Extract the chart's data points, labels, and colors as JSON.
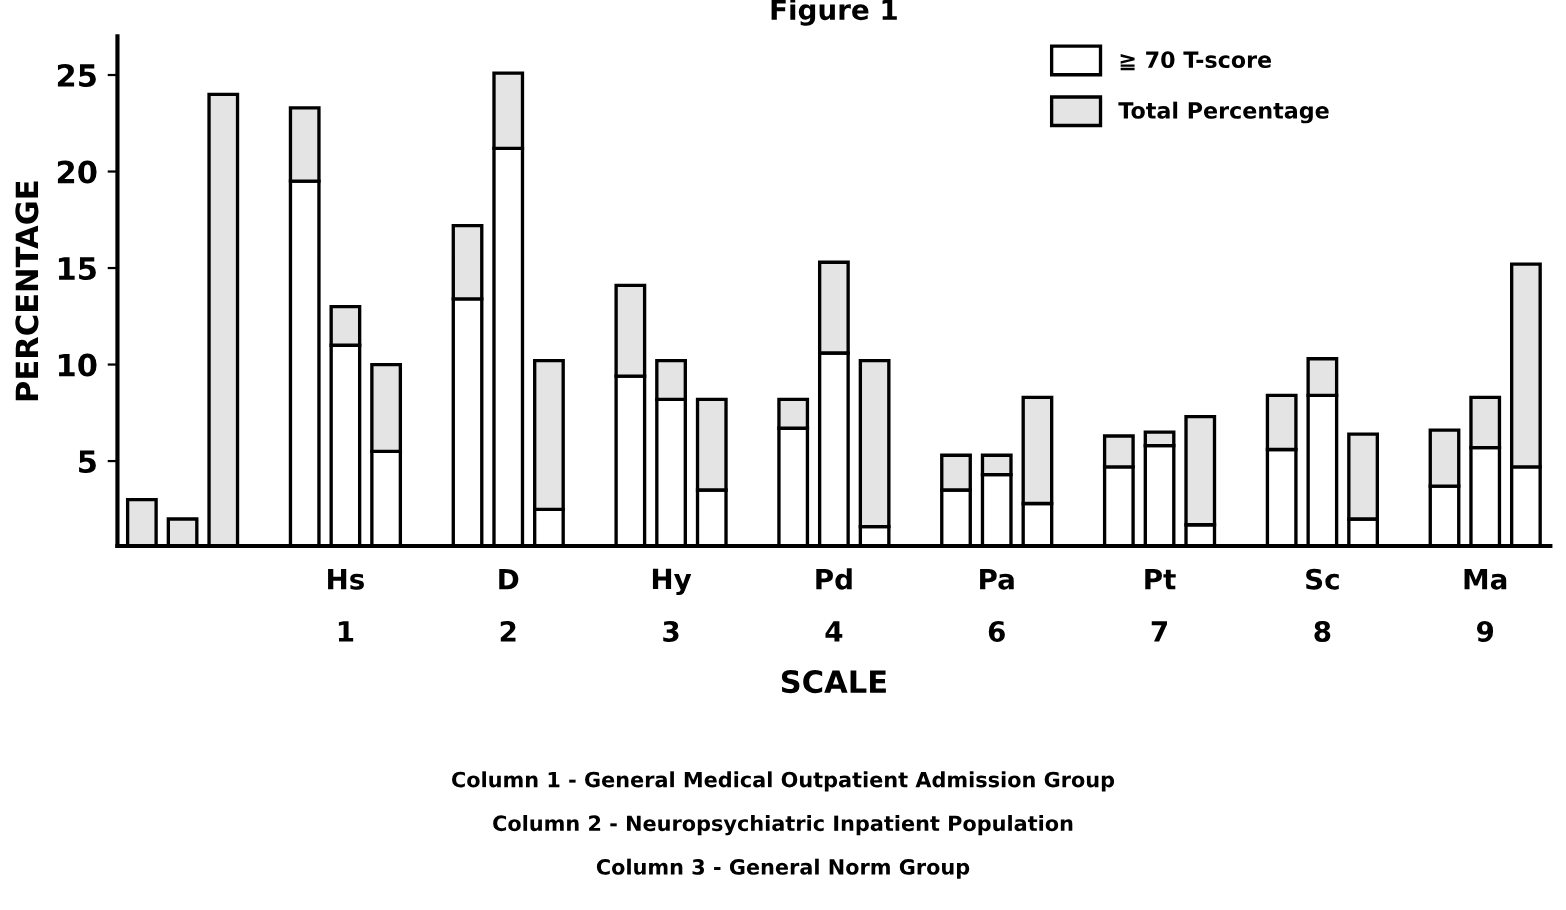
{
  "chart_data": {
    "type": "bar",
    "title": "Figure 1",
    "xlabel": "SCALE",
    "ylabel": "PERCENTAGE",
    "categories": [
      null,
      null,
      null,
      null,
      null,
      "Hs\n1",
      null,
      null,
      null,
      "D\n2",
      null,
      null,
      null,
      "Hy\n3",
      null,
      null,
      null,
      "Pd\n4",
      null,
      null,
      null,
      "Pa\n6",
      null,
      null,
      null,
      "Pt\n7",
      null,
      null,
      null,
      "Sc\n8",
      null,
      null,
      null,
      "Ma\n9",
      null
    ],
    "stacked": true,
    "series": [
      {
        "name": "≧ 70 T-score",
        "color": "#ffffff",
        "values": [
          null,
          null,
          null,
          null,
          19.5,
          11.0,
          5.5,
          null,
          13.4,
          21.2,
          2.5,
          null,
          9.4,
          8.2,
          3.5,
          null,
          6.7,
          10.6,
          1.6,
          null,
          3.5,
          4.3,
          2.8,
          null,
          4.7,
          5.8,
          1.7,
          null,
          5.6,
          8.4,
          2.0,
          null,
          3.7,
          5.7,
          4.7
        ]
      },
      {
        "name": "Total Percentage",
        "color": "#e4e4e4",
        "values": [
          3.0,
          2.0,
          24.0,
          null,
          3.8,
          2.0,
          4.5,
          null,
          3.8,
          3.9,
          7.7,
          null,
          4.7,
          2.0,
          4.7,
          null,
          1.5,
          4.7,
          8.6,
          null,
          1.8,
          1.0,
          5.5,
          null,
          1.6,
          0.7,
          5.6,
          null,
          2.8,
          1.9,
          4.4,
          null,
          2.9,
          2.6,
          10.5
        ]
      }
    ],
    "ylim": [
      0.6,
      27
    ],
    "yticks": [
      5,
      10,
      15,
      20,
      25
    ],
    "grid": false,
    "legend": "top right",
    "annotations": [
      "Column 1 - General Medical Outpatient Admission Group",
      "Column 2 - Neuropsychiatric Inpatient Population",
      "Column 3 - General Norm Group"
    ]
  }
}
